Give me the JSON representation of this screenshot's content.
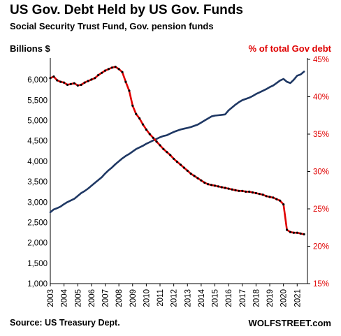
{
  "chart_data": {
    "type": "line",
    "title": "US Gov. Debt Held by US Gov. Funds",
    "subtitle": "Social Security Trust Fund, Gov. pension funds",
    "ylabel_left": "Billions $",
    "ylabel_right": "% of total Gov debt",
    "source": "Source: US Treasury Dept.",
    "brand": "WOLFSTREET.com",
    "ylim_left": [
      1000,
      6500
    ],
    "ylim_right": [
      15,
      45
    ],
    "xlim": [
      2003,
      2021.75
    ],
    "grid": false,
    "y_left_ticks": [
      "1,000",
      "1,500",
      "2,000",
      "2,500",
      "3,000",
      "3,500",
      "4,000",
      "4,500",
      "5,000",
      "5,500",
      "6,000"
    ],
    "y_right_ticks": [
      "15%",
      "20%",
      "25%",
      "30%",
      "35%",
      "40%",
      "45%"
    ],
    "x_ticks": [
      "2003",
      "2004",
      "2005",
      "2006",
      "2007",
      "2008",
      "2009",
      "2010",
      "2011",
      "2012",
      "2013",
      "2014",
      "2015",
      "2016",
      "2017",
      "2018",
      "2019",
      "2020",
      "2021"
    ],
    "series": [
      {
        "name": "Billions $",
        "axis": "left",
        "color": "#1f3864",
        "points": [
          [
            2003.0,
            2750
          ],
          [
            2003.25,
            2820
          ],
          [
            2003.5,
            2850
          ],
          [
            2003.75,
            2890
          ],
          [
            2004.0,
            2950
          ],
          [
            2004.25,
            3000
          ],
          [
            2004.5,
            3040
          ],
          [
            2004.75,
            3080
          ],
          [
            2005.0,
            3150
          ],
          [
            2005.25,
            3220
          ],
          [
            2005.5,
            3270
          ],
          [
            2005.75,
            3330
          ],
          [
            2006.0,
            3400
          ],
          [
            2006.25,
            3470
          ],
          [
            2006.5,
            3540
          ],
          [
            2006.75,
            3610
          ],
          [
            2007.0,
            3700
          ],
          [
            2007.25,
            3780
          ],
          [
            2007.5,
            3850
          ],
          [
            2007.75,
            3930
          ],
          [
            2008.0,
            4000
          ],
          [
            2008.25,
            4070
          ],
          [
            2008.5,
            4130
          ],
          [
            2008.75,
            4180
          ],
          [
            2009.0,
            4240
          ],
          [
            2009.25,
            4300
          ],
          [
            2009.5,
            4340
          ],
          [
            2009.75,
            4380
          ],
          [
            2010.0,
            4430
          ],
          [
            2010.25,
            4470
          ],
          [
            2010.5,
            4510
          ],
          [
            2010.75,
            4550
          ],
          [
            2011.0,
            4590
          ],
          [
            2011.25,
            4620
          ],
          [
            2011.5,
            4640
          ],
          [
            2011.75,
            4680
          ],
          [
            2012.0,
            4720
          ],
          [
            2012.25,
            4750
          ],
          [
            2012.5,
            4780
          ],
          [
            2012.75,
            4800
          ],
          [
            2013.0,
            4820
          ],
          [
            2013.25,
            4840
          ],
          [
            2013.5,
            4870
          ],
          [
            2013.75,
            4900
          ],
          [
            2014.0,
            4950
          ],
          [
            2014.25,
            5000
          ],
          [
            2014.5,
            5050
          ],
          [
            2014.75,
            5100
          ],
          [
            2015.0,
            5120
          ],
          [
            2015.25,
            5130
          ],
          [
            2015.5,
            5140
          ],
          [
            2015.75,
            5150
          ],
          [
            2016.0,
            5250
          ],
          [
            2016.25,
            5320
          ],
          [
            2016.5,
            5390
          ],
          [
            2016.75,
            5450
          ],
          [
            2017.0,
            5500
          ],
          [
            2017.25,
            5530
          ],
          [
            2017.5,
            5560
          ],
          [
            2017.75,
            5600
          ],
          [
            2018.0,
            5650
          ],
          [
            2018.25,
            5690
          ],
          [
            2018.5,
            5730
          ],
          [
            2018.75,
            5770
          ],
          [
            2019.0,
            5820
          ],
          [
            2019.25,
            5860
          ],
          [
            2019.5,
            5920
          ],
          [
            2019.75,
            5980
          ],
          [
            2020.0,
            6020
          ],
          [
            2020.25,
            5950
          ],
          [
            2020.5,
            5920
          ],
          [
            2020.75,
            6000
          ],
          [
            2021.0,
            6100
          ],
          [
            2021.25,
            6130
          ],
          [
            2021.5,
            6200
          ]
        ]
      },
      {
        "name": "% of total Gov debt",
        "axis": "right",
        "color": "#e00000",
        "points": [
          [
            2003.0,
            42.5
          ],
          [
            2003.25,
            42.7
          ],
          [
            2003.5,
            42.2
          ],
          [
            2003.75,
            42.0
          ],
          [
            2004.0,
            41.9
          ],
          [
            2004.25,
            41.6
          ],
          [
            2004.5,
            41.7
          ],
          [
            2004.75,
            41.8
          ],
          [
            2005.0,
            41.5
          ],
          [
            2005.25,
            41.6
          ],
          [
            2005.5,
            41.9
          ],
          [
            2005.75,
            42.1
          ],
          [
            2006.0,
            42.3
          ],
          [
            2006.25,
            42.5
          ],
          [
            2006.5,
            42.9
          ],
          [
            2006.75,
            43.2
          ],
          [
            2007.0,
            43.5
          ],
          [
            2007.25,
            43.7
          ],
          [
            2007.5,
            43.9
          ],
          [
            2007.75,
            44.0
          ],
          [
            2008.0,
            43.7
          ],
          [
            2008.25,
            43.3
          ],
          [
            2008.5,
            42.0
          ],
          [
            2008.75,
            40.8
          ],
          [
            2009.0,
            38.8
          ],
          [
            2009.25,
            37.7
          ],
          [
            2009.5,
            37.1
          ],
          [
            2009.75,
            36.3
          ],
          [
            2010.0,
            35.6
          ],
          [
            2010.25,
            35.0
          ],
          [
            2010.5,
            34.5
          ],
          [
            2010.75,
            34.0
          ],
          [
            2011.0,
            33.5
          ],
          [
            2011.25,
            33.0
          ],
          [
            2011.5,
            32.6
          ],
          [
            2011.75,
            32.2
          ],
          [
            2012.0,
            31.7
          ],
          [
            2012.25,
            31.3
          ],
          [
            2012.5,
            30.9
          ],
          [
            2012.75,
            30.5
          ],
          [
            2013.0,
            30.1
          ],
          [
            2013.25,
            29.7
          ],
          [
            2013.5,
            29.4
          ],
          [
            2013.75,
            29.1
          ],
          [
            2014.0,
            28.8
          ],
          [
            2014.25,
            28.5
          ],
          [
            2014.5,
            28.3
          ],
          [
            2014.75,
            28.2
          ],
          [
            2015.0,
            28.1
          ],
          [
            2015.25,
            28.0
          ],
          [
            2015.5,
            27.9
          ],
          [
            2015.75,
            27.8
          ],
          [
            2016.0,
            27.7
          ],
          [
            2016.25,
            27.6
          ],
          [
            2016.5,
            27.5
          ],
          [
            2016.75,
            27.4
          ],
          [
            2017.0,
            27.4
          ],
          [
            2017.25,
            27.3
          ],
          [
            2017.5,
            27.3
          ],
          [
            2017.75,
            27.2
          ],
          [
            2018.0,
            27.1
          ],
          [
            2018.25,
            27.0
          ],
          [
            2018.5,
            26.9
          ],
          [
            2018.75,
            26.7
          ],
          [
            2019.0,
            26.6
          ],
          [
            2019.25,
            26.5
          ],
          [
            2019.5,
            26.3
          ],
          [
            2019.75,
            26.1
          ],
          [
            2020.0,
            25.6
          ],
          [
            2020.25,
            22.2
          ],
          [
            2020.5,
            21.9
          ],
          [
            2020.75,
            21.8
          ],
          [
            2021.0,
            21.8
          ],
          [
            2021.25,
            21.7
          ],
          [
            2021.5,
            21.6
          ]
        ]
      }
    ]
  }
}
